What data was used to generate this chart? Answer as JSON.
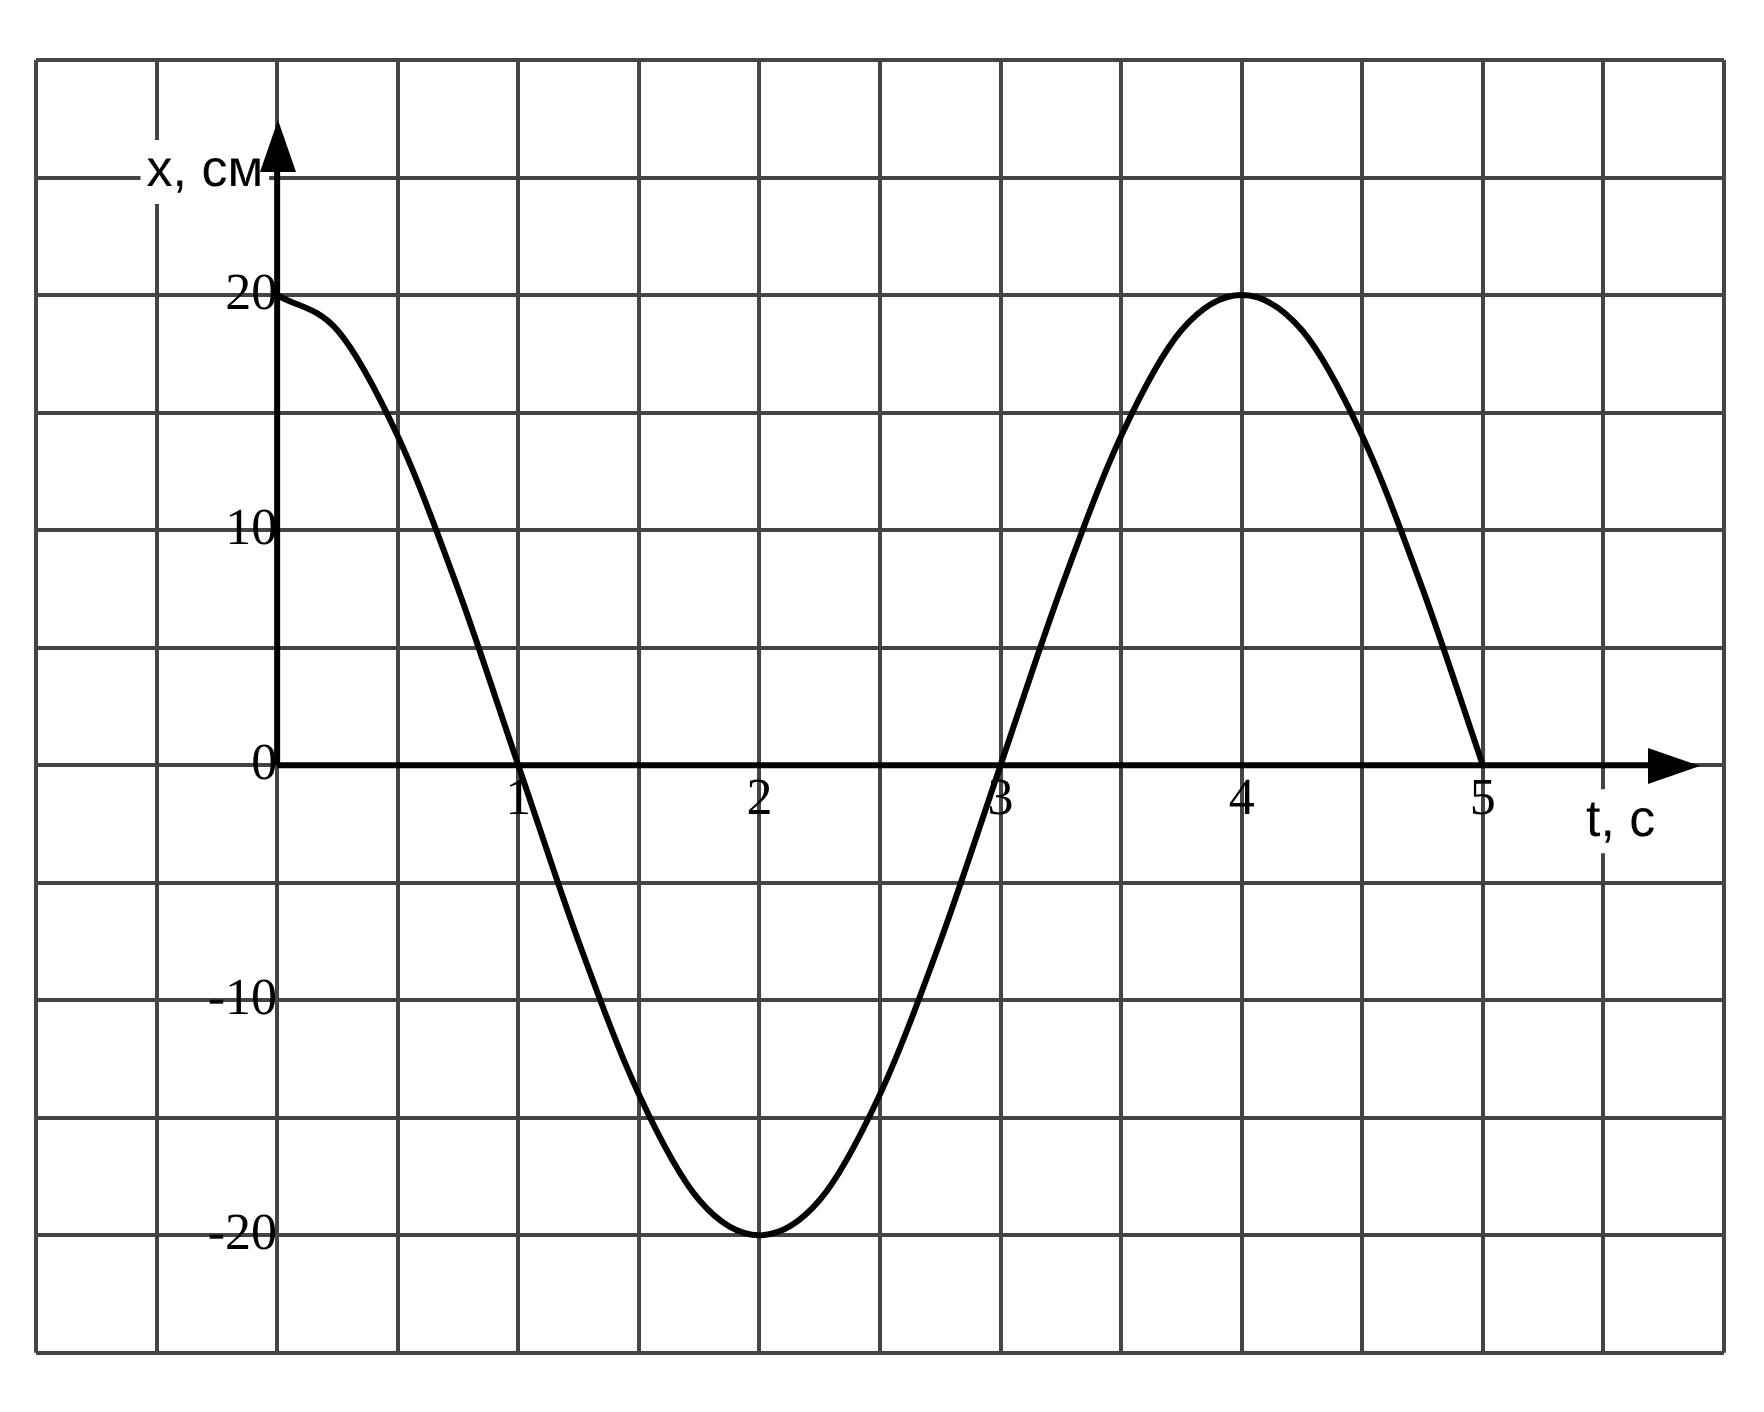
{
  "chart_data": {
    "type": "line",
    "xlabel": "t, с",
    "ylabel": "x, см",
    "x": [
      0,
      0.25,
      0.5,
      0.75,
      1,
      1.25,
      1.5,
      1.75,
      2,
      2.25,
      2.5,
      2.75,
      3,
      3.25,
      3.5,
      3.75,
      4,
      4.25,
      4.5,
      4.75,
      5
    ],
    "series": [
      {
        "color": "#000000",
        "values": [
          20,
          18.5,
          14,
          7.5,
          0,
          -7.5,
          -14,
          -18.5,
          -20,
          -18.5,
          -14,
          -7.5,
          0,
          7.5,
          14,
          18.5,
          20,
          18.5,
          14,
          7.5,
          0
        ]
      }
    ],
    "xlim": [
      -1,
      6
    ],
    "xticks": [
      {
        "value": -1,
        "label": null
      },
      {
        "value": -0.5,
        "label": null
      },
      {
        "value": 0,
        "label": null
      },
      {
        "value": 0.5,
        "label": null
      },
      1,
      {
        "value": 1.5,
        "label": null
      },
      2,
      {
        "value": 2.5,
        "label": null
      },
      3,
      {
        "value": 3.5,
        "label": null
      },
      4,
      {
        "value": 4.5,
        "label": null
      },
      5,
      {
        "value": 5.5,
        "label": null
      },
      {
        "value": 6,
        "label": null
      }
    ],
    "ylim": [
      -25,
      30
    ],
    "yticks": [
      {
        "value": -25,
        "label": null
      },
      -20,
      {
        "value": -15,
        "label": null
      },
      -10,
      {
        "value": -5,
        "label": null
      },
      0,
      {
        "value": 5,
        "label": null
      },
      10,
      {
        "value": 15,
        "label": null
      },
      20,
      {
        "value": 25,
        "label": null
      },
      {
        "value": 30,
        "label": null
      }
    ],
    "grid": true,
    "marker": "none",
    "line_style": "solid",
    "legend": false
  }
}
